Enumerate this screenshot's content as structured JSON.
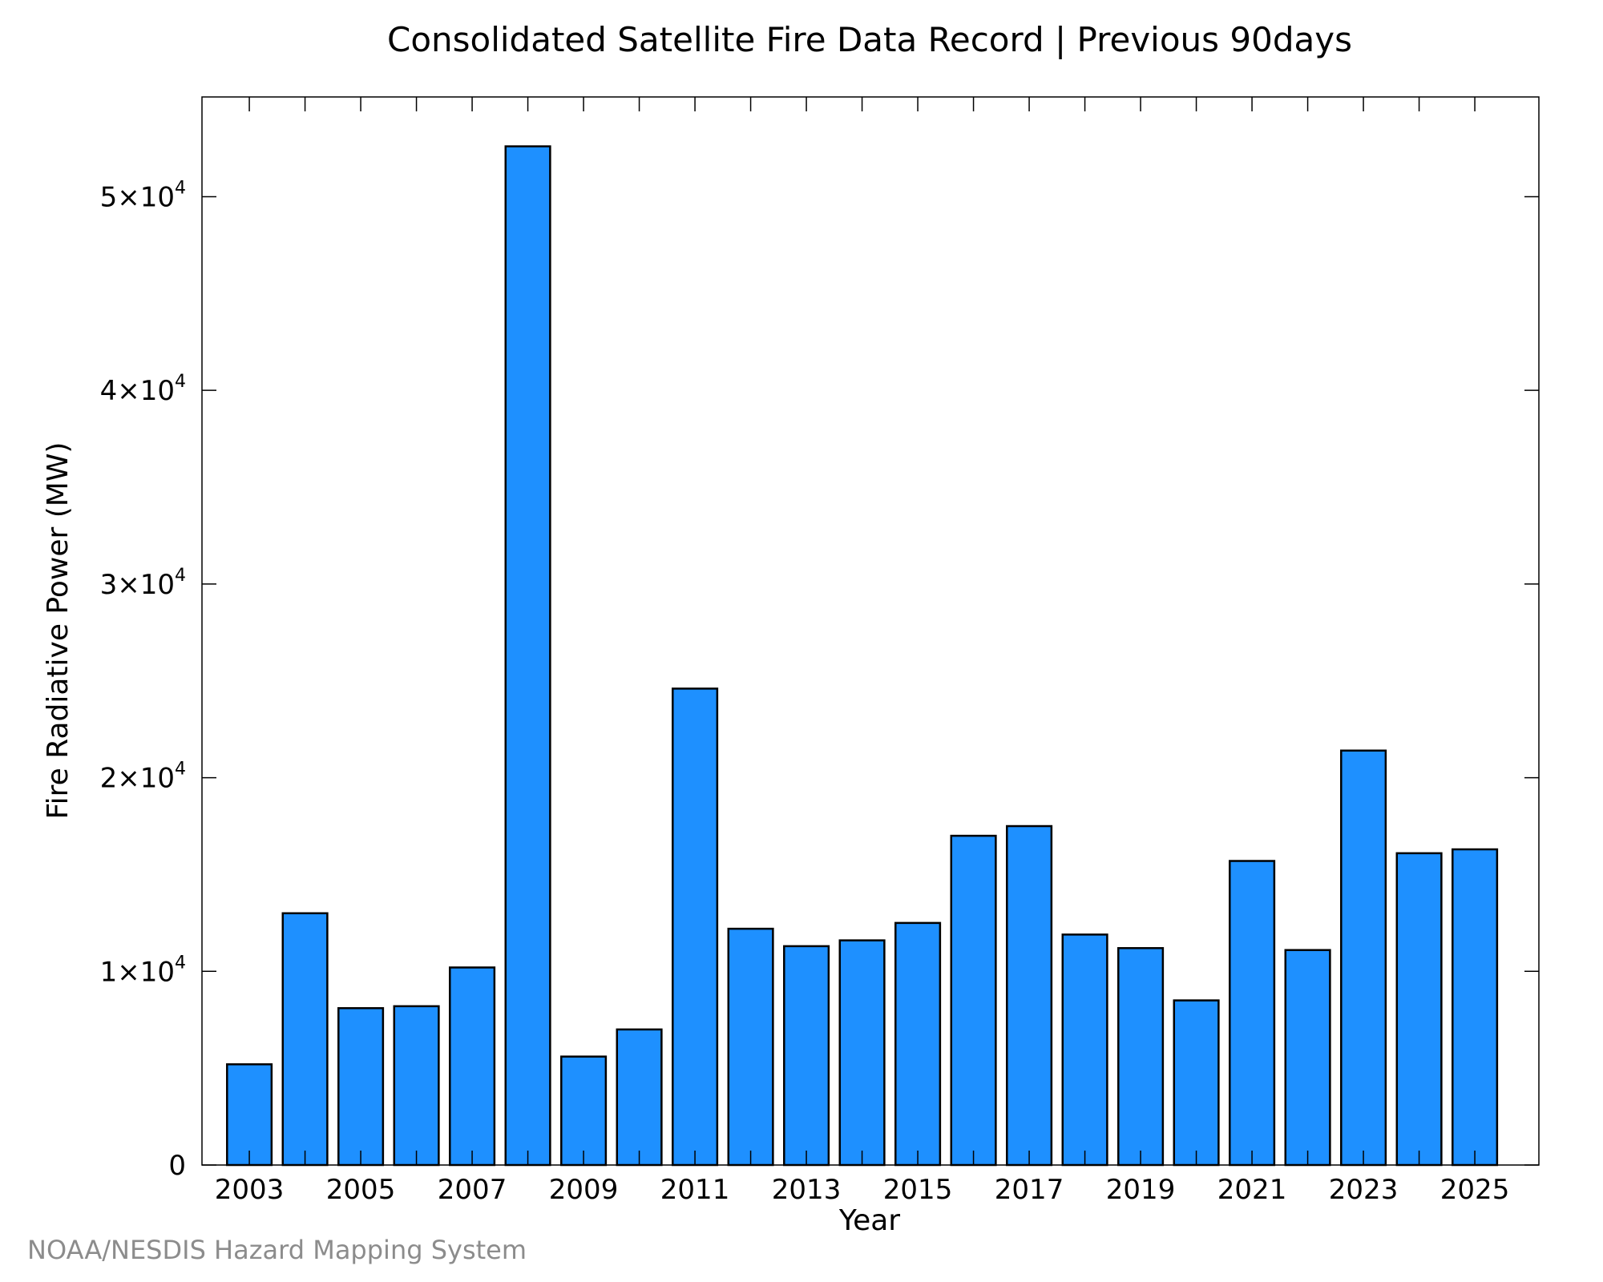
{
  "chart_data": {
    "type": "bar",
    "title": "Consolidated Satellite Fire Data Record | Previous 90days",
    "xlabel": "Year",
    "ylabel": "Fire Radiative Power (MW)",
    "categories": [
      "2003",
      "2004",
      "2005",
      "2006",
      "2007",
      "2008",
      "2009",
      "2010",
      "2011",
      "2012",
      "2013",
      "2014",
      "2015",
      "2016",
      "2017",
      "2018",
      "2019",
      "2020",
      "2021",
      "2022",
      "2023",
      "2024",
      "2025"
    ],
    "values": [
      5200,
      13000,
      8100,
      8200,
      10200,
      52600,
      5600,
      7000,
      24600,
      12200,
      11300,
      11600,
      12500,
      17000,
      17500,
      11900,
      11200,
      8500,
      15700,
      11100,
      21400,
      16100,
      16300
    ],
    "x_tick_labels": [
      "2003",
      "2005",
      "2007",
      "2009",
      "2011",
      "2013",
      "2015",
      "2017",
      "2019",
      "2021",
      "2023",
      "2025"
    ],
    "y_ticks": [
      {
        "value": 0,
        "label": "0",
        "exponent": ""
      },
      {
        "value": 10000,
        "label": "1×10",
        "exponent": "4"
      },
      {
        "value": 20000,
        "label": "2×10",
        "exponent": "4"
      },
      {
        "value": 30000,
        "label": "3×10",
        "exponent": "4"
      },
      {
        "value": 40000,
        "label": "4×10",
        "exponent": "4"
      },
      {
        "value": 50000,
        "label": "5×10",
        "exponent": "4"
      }
    ],
    "xlim": [
      2002.15,
      2026.15
    ],
    "ylim": [
      0,
      55150
    ],
    "grid": false,
    "legend": false,
    "bar_color": "#1e90ff",
    "edge_color": "#000000"
  },
  "footer": {
    "credit": "NOAA/NESDIS Hazard Mapping System"
  }
}
